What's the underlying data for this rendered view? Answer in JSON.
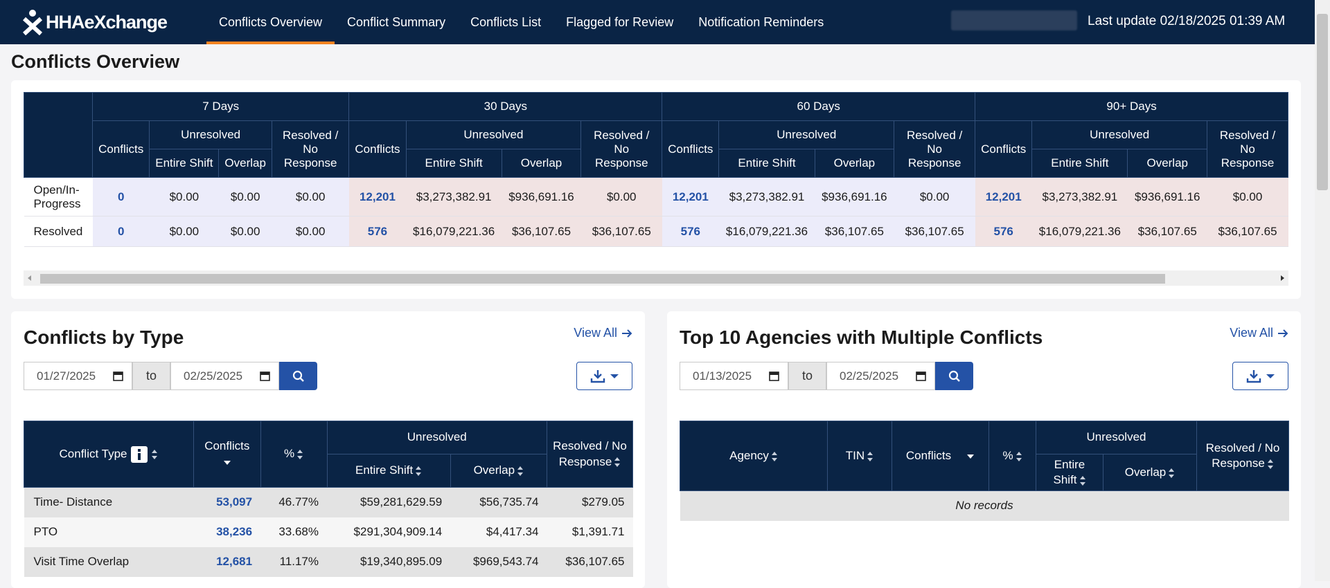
{
  "nav": {
    "brand": "HHAeXchange",
    "tabs": [
      "Conflicts Overview",
      "Conflict Summary",
      "Conflicts List",
      "Flagged for Review",
      "Notification Reminders"
    ],
    "last_update": "Last update 02/18/2025 01:39 AM"
  },
  "page_title": "Conflicts Overview",
  "overview": {
    "headers": {
      "conflicts": "Conflicts",
      "unresolved": "Unresolved",
      "entire_shift": "Entire Shift",
      "overlap": "Overlap",
      "resolved": "Resolved / No Response"
    },
    "row_labels": [
      "Open/In-Progress",
      "Resolved"
    ],
    "groups": [
      {
        "name": "7 Days",
        "rows": [
          [
            "0",
            "$0.00",
            "$0.00",
            "$0.00"
          ],
          [
            "0",
            "$0.00",
            "$0.00",
            "$0.00"
          ]
        ]
      },
      {
        "name": "30 Days",
        "rows": [
          [
            "12,201",
            "$3,273,382.91",
            "$936,691.16",
            "$0.00"
          ],
          [
            "576",
            "$16,079,221.36",
            "$36,107.65",
            "$36,107.65"
          ]
        ]
      },
      {
        "name": "60 Days",
        "rows": [
          [
            "12,201",
            "$3,273,382.91",
            "$936,691.16",
            "$0.00"
          ],
          [
            "576",
            "$16,079,221.36",
            "$36,107.65",
            "$36,107.65"
          ]
        ]
      },
      {
        "name": "90+ Days",
        "rows": [
          [
            "12,201",
            "$3,273,382.91",
            "$936,691.16",
            "$0.00"
          ],
          [
            "576",
            "$16,079,221.36",
            "$36,107.65",
            "$36,107.65"
          ]
        ]
      }
    ]
  },
  "by_type": {
    "title": "Conflicts by Type",
    "view_all": "View All",
    "date_from": "01/27/2025",
    "to": "to",
    "date_to": "02/25/2025",
    "headers": {
      "type": "Conflict Type",
      "conflicts": "Conflicts",
      "pct": "%",
      "unresolved": "Unresolved",
      "entire_shift": "Entire Shift",
      "overlap": "Overlap",
      "resolved": "Resolved / No Response"
    },
    "rows": [
      [
        "Time- Distance",
        "53,097",
        "46.77%",
        "$59,281,629.59",
        "$56,735.74",
        "$279.05"
      ],
      [
        "PTO",
        "38,236",
        "33.68%",
        "$291,304,909.14",
        "$4,417.34",
        "$1,391.71"
      ],
      [
        "Visit Time Overlap",
        "12,681",
        "11.17%",
        "$19,340,895.09",
        "$969,543.74",
        "$36,107.65"
      ]
    ]
  },
  "top_agencies": {
    "title": "Top 10 Agencies with Multiple Conflicts",
    "view_all": "View All",
    "date_from": "01/13/2025",
    "to": "to",
    "date_to": "02/25/2025",
    "headers": {
      "agency": "Agency",
      "tin": "TIN",
      "conflicts": "Conflicts",
      "pct": "%",
      "unresolved": "Unresolved",
      "entire_shift": "Entire Shift",
      "overlap": "Overlap",
      "resolved": "Resolved / No Response"
    },
    "empty": "No records"
  }
}
